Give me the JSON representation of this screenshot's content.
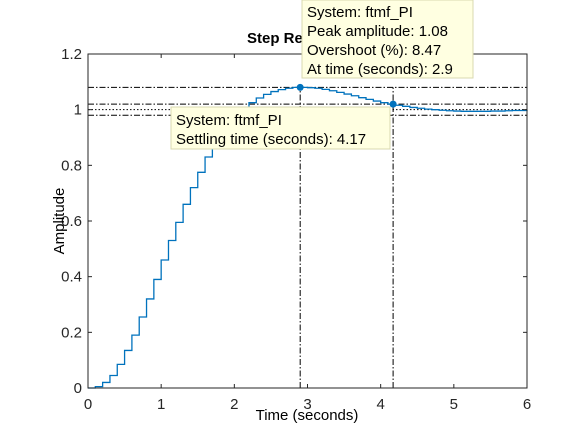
{
  "chart_data": {
    "type": "line",
    "title": "Step Re",
    "xlabel": "Time (seconds)",
    "ylabel": "Amplitude",
    "xlim": [
      0,
      6
    ],
    "ylim": [
      0,
      1.2
    ],
    "xticks": [
      "0",
      "1",
      "2",
      "3",
      "4",
      "5",
      "6"
    ],
    "yticks": [
      "0",
      "0.2",
      "0.4",
      "0.6",
      "0.8",
      "1",
      "1.2"
    ],
    "grid": false,
    "style": "stairs",
    "series": [
      {
        "name": "ftmf_PI",
        "color": "#0072bd",
        "x": [
          0,
          0.1,
          0.2,
          0.3,
          0.4,
          0.5,
          0.6,
          0.7,
          0.8,
          0.9,
          1.0,
          1.1,
          1.2,
          1.3,
          1.4,
          1.5,
          1.6,
          1.7,
          1.8,
          1.9,
          2.0,
          2.1,
          2.2,
          2.3,
          2.4,
          2.5,
          2.6,
          2.7,
          2.8,
          2.9,
          3.0,
          3.1,
          3.2,
          3.3,
          3.4,
          3.5,
          3.6,
          3.7,
          3.8,
          3.9,
          4.0,
          4.1,
          4.2,
          4.3,
          4.4,
          4.5,
          4.6,
          4.7,
          4.8,
          4.9,
          5.0,
          5.1,
          5.2,
          5.3,
          5.4,
          5.5,
          5.6,
          5.7,
          5.8,
          5.9,
          6.0
        ],
        "y": [
          0,
          0.005,
          0.02,
          0.045,
          0.085,
          0.135,
          0.19,
          0.255,
          0.32,
          0.39,
          0.46,
          0.53,
          0.595,
          0.66,
          0.72,
          0.775,
          0.83,
          0.875,
          0.915,
          0.95,
          0.98,
          1.005,
          1.025,
          1.042,
          1.055,
          1.065,
          1.072,
          1.077,
          1.08,
          1.08,
          1.079,
          1.077,
          1.073,
          1.068,
          1.062,
          1.056,
          1.05,
          1.043,
          1.037,
          1.031,
          1.025,
          1.02,
          1.016,
          1.012,
          1.008,
          1.005,
          1.002,
          1.0,
          0.998,
          0.996,
          0.995,
          0.994,
          0.994,
          0.994,
          0.994,
          0.995,
          0.995,
          0.996,
          0.997,
          0.997,
          0.998
        ]
      }
    ],
    "reference_lines": {
      "horizontal": [
        1.08,
        1.02,
        1.0,
        0.98
      ],
      "vertical": [
        2.9,
        4.17
      ]
    },
    "markers": [
      {
        "x": 2.9,
        "y": 1.08
      },
      {
        "x": 4.17,
        "y": 1.02
      }
    ],
    "annotations": [
      {
        "lines": [
          "System: ftmf_PI",
          "Peak amplitude: 1.08",
          "Overshoot (%): 8.47",
          "At time (seconds): 2.9"
        ]
      },
      {
        "lines": [
          "System: ftmf_PI",
          "Settling time (seconds): 4.17"
        ]
      }
    ]
  }
}
